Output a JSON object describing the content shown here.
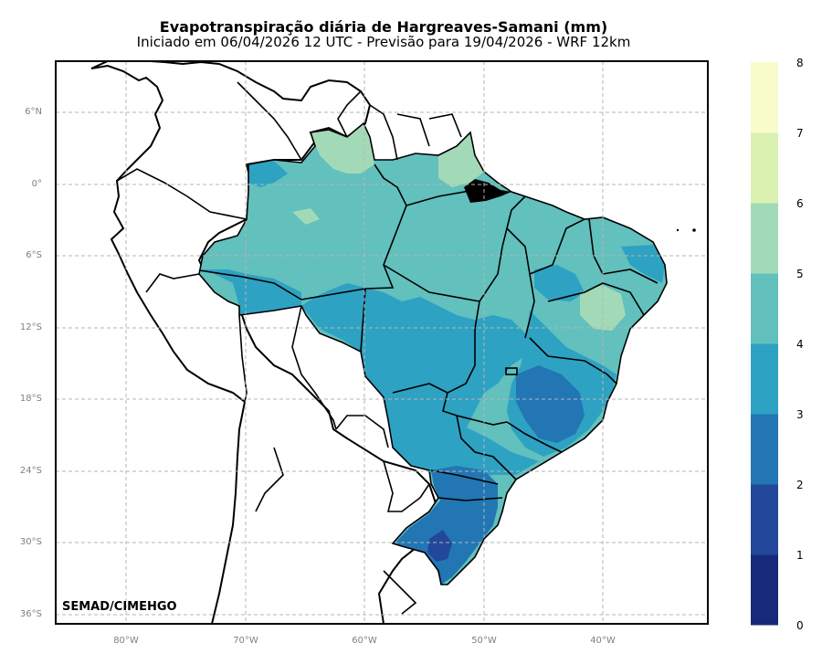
{
  "title": "Evapotranspiração diária de Hargreaves-Samani (mm)",
  "subtitle": "Iniciado em 06/04/2026 12 UTC - Previsão para 19/04/2026 - WRF 12km",
  "credit": "SEMAD/CIMEHGO",
  "axes": {
    "lat_ticks": [
      "6°N",
      "0°",
      "6°S",
      "12°S",
      "18°S",
      "24°S",
      "30°S",
      "36°S"
    ],
    "lon_ticks": [
      "80°W",
      "70°W",
      "60°W",
      "50°W",
      "40°W"
    ],
    "grid": true,
    "grid_style": "dashed"
  },
  "colorbar": {
    "ticks": [
      "0",
      "1",
      "2",
      "3",
      "4",
      "5",
      "6",
      "7",
      "8"
    ],
    "colors": [
      "#172a7a",
      "#23479b",
      "#2276b4",
      "#2ea2c2",
      "#62c0bd",
      "#a2dab7",
      "#daf1b1",
      "#f7fcca"
    ]
  },
  "icons": {
    "country_borders": "black outline",
    "state_borders": "black outline"
  }
}
